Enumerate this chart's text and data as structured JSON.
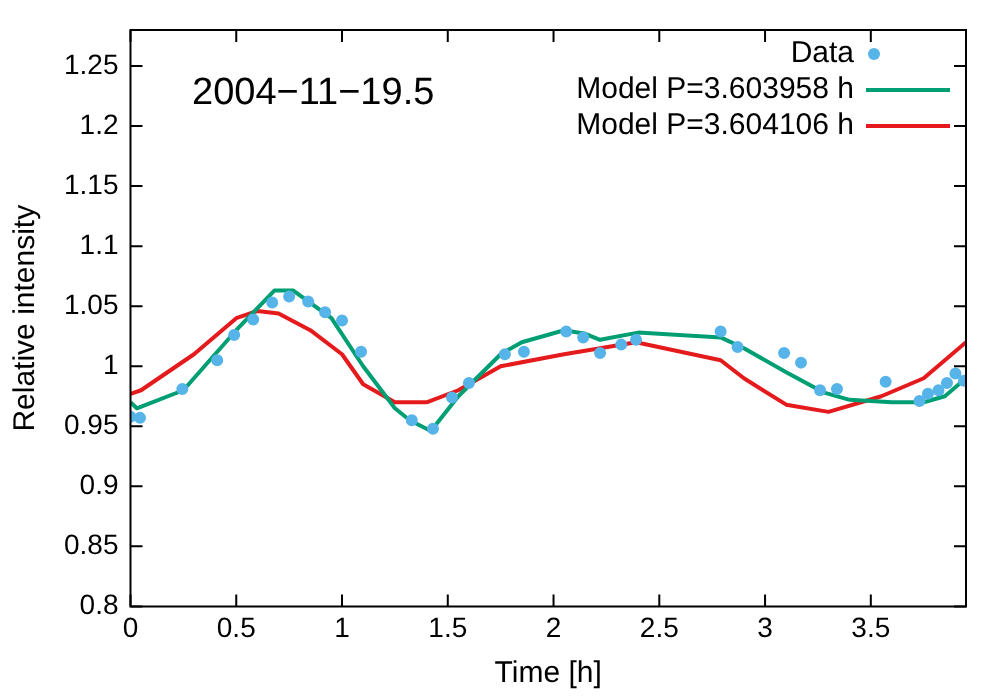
{
  "chart_data": {
    "type": "scatter",
    "xlabel": "Time [h]",
    "ylabel": "Relative intensity",
    "annotations": [
      "2004−11−19.5"
    ],
    "xlim": [
      0,
      3.95
    ],
    "xticks": [
      0,
      0.5,
      1,
      1.5,
      2,
      2.5,
      3,
      3.5
    ],
    "ylim": [
      0.8,
      1.28
    ],
    "yticks": [
      0.8,
      0.85,
      0.9,
      0.95,
      1,
      1.05,
      1.1,
      1.15,
      1.2,
      1.25
    ],
    "grid": false,
    "legend": "top right",
    "series": [
      {
        "name": "Data",
        "type": "scatter",
        "marker": "circle",
        "color": "#56b4e9",
        "x": [
          0,
          0.045,
          0.245,
          0.41,
          0.49,
          0.58,
          0.67,
          0.75,
          0.84,
          0.92,
          1.0,
          1.09,
          1.33,
          1.43,
          1.52,
          1.6,
          1.77,
          1.86,
          2.06,
          2.14,
          2.22,
          2.32,
          2.39,
          2.79,
          2.87,
          3.09,
          3.17,
          3.26,
          3.34,
          3.57,
          3.73,
          3.77,
          3.82,
          3.86,
          3.9,
          3.94
        ],
        "values": [
          0.958,
          0.957,
          0.981,
          1.005,
          1.026,
          1.039,
          1.053,
          1.058,
          1.054,
          1.045,
          1.038,
          1.012,
          0.955,
          0.948,
          0.974,
          0.986,
          1.01,
          1.012,
          1.029,
          1.024,
          1.011,
          1.018,
          1.022,
          1.029,
          1.016,
          1.011,
          1.003,
          0.98,
          0.981,
          0.987,
          0.971,
          0.977,
          0.98,
          0.986,
          0.994,
          0.988
        ]
      },
      {
        "name": "Model P=3.603958 h",
        "type": "line",
        "color": "#009e73",
        "x": [
          0,
          0.03,
          0.25,
          0.5,
          0.68,
          0.77,
          0.95,
          1.1,
          1.25,
          1.32,
          1.42,
          1.55,
          1.75,
          1.85,
          2.05,
          2.15,
          2.22,
          2.4,
          2.79,
          2.9,
          3.1,
          3.28,
          3.4,
          3.6,
          3.75,
          3.85,
          3.95
        ],
        "values": [
          0.97,
          0.965,
          0.98,
          1.03,
          1.063,
          1.063,
          1.04,
          1.0,
          0.965,
          0.955,
          0.946,
          0.975,
          1.01,
          1.02,
          1.03,
          1.027,
          1.022,
          1.028,
          1.024,
          1.015,
          0.995,
          0.978,
          0.972,
          0.97,
          0.97,
          0.975,
          0.99
        ]
      },
      {
        "name": "Model P=3.604106 h",
        "type": "line",
        "color": "#e41a1c",
        "x": [
          0,
          0.05,
          0.3,
          0.5,
          0.6,
          0.7,
          0.85,
          1.0,
          1.1,
          1.25,
          1.4,
          1.55,
          1.75,
          2.05,
          2.39,
          2.79,
          2.9,
          3.1,
          3.3,
          3.55,
          3.75,
          3.85,
          3.95
        ],
        "values": [
          0.977,
          0.98,
          1.01,
          1.04,
          1.046,
          1.044,
          1.03,
          1.01,
          0.985,
          0.97,
          0.97,
          0.98,
          1.0,
          1.01,
          1.02,
          1.005,
          0.99,
          0.968,
          0.962,
          0.975,
          0.99,
          1.005,
          1.02
        ]
      }
    ]
  }
}
